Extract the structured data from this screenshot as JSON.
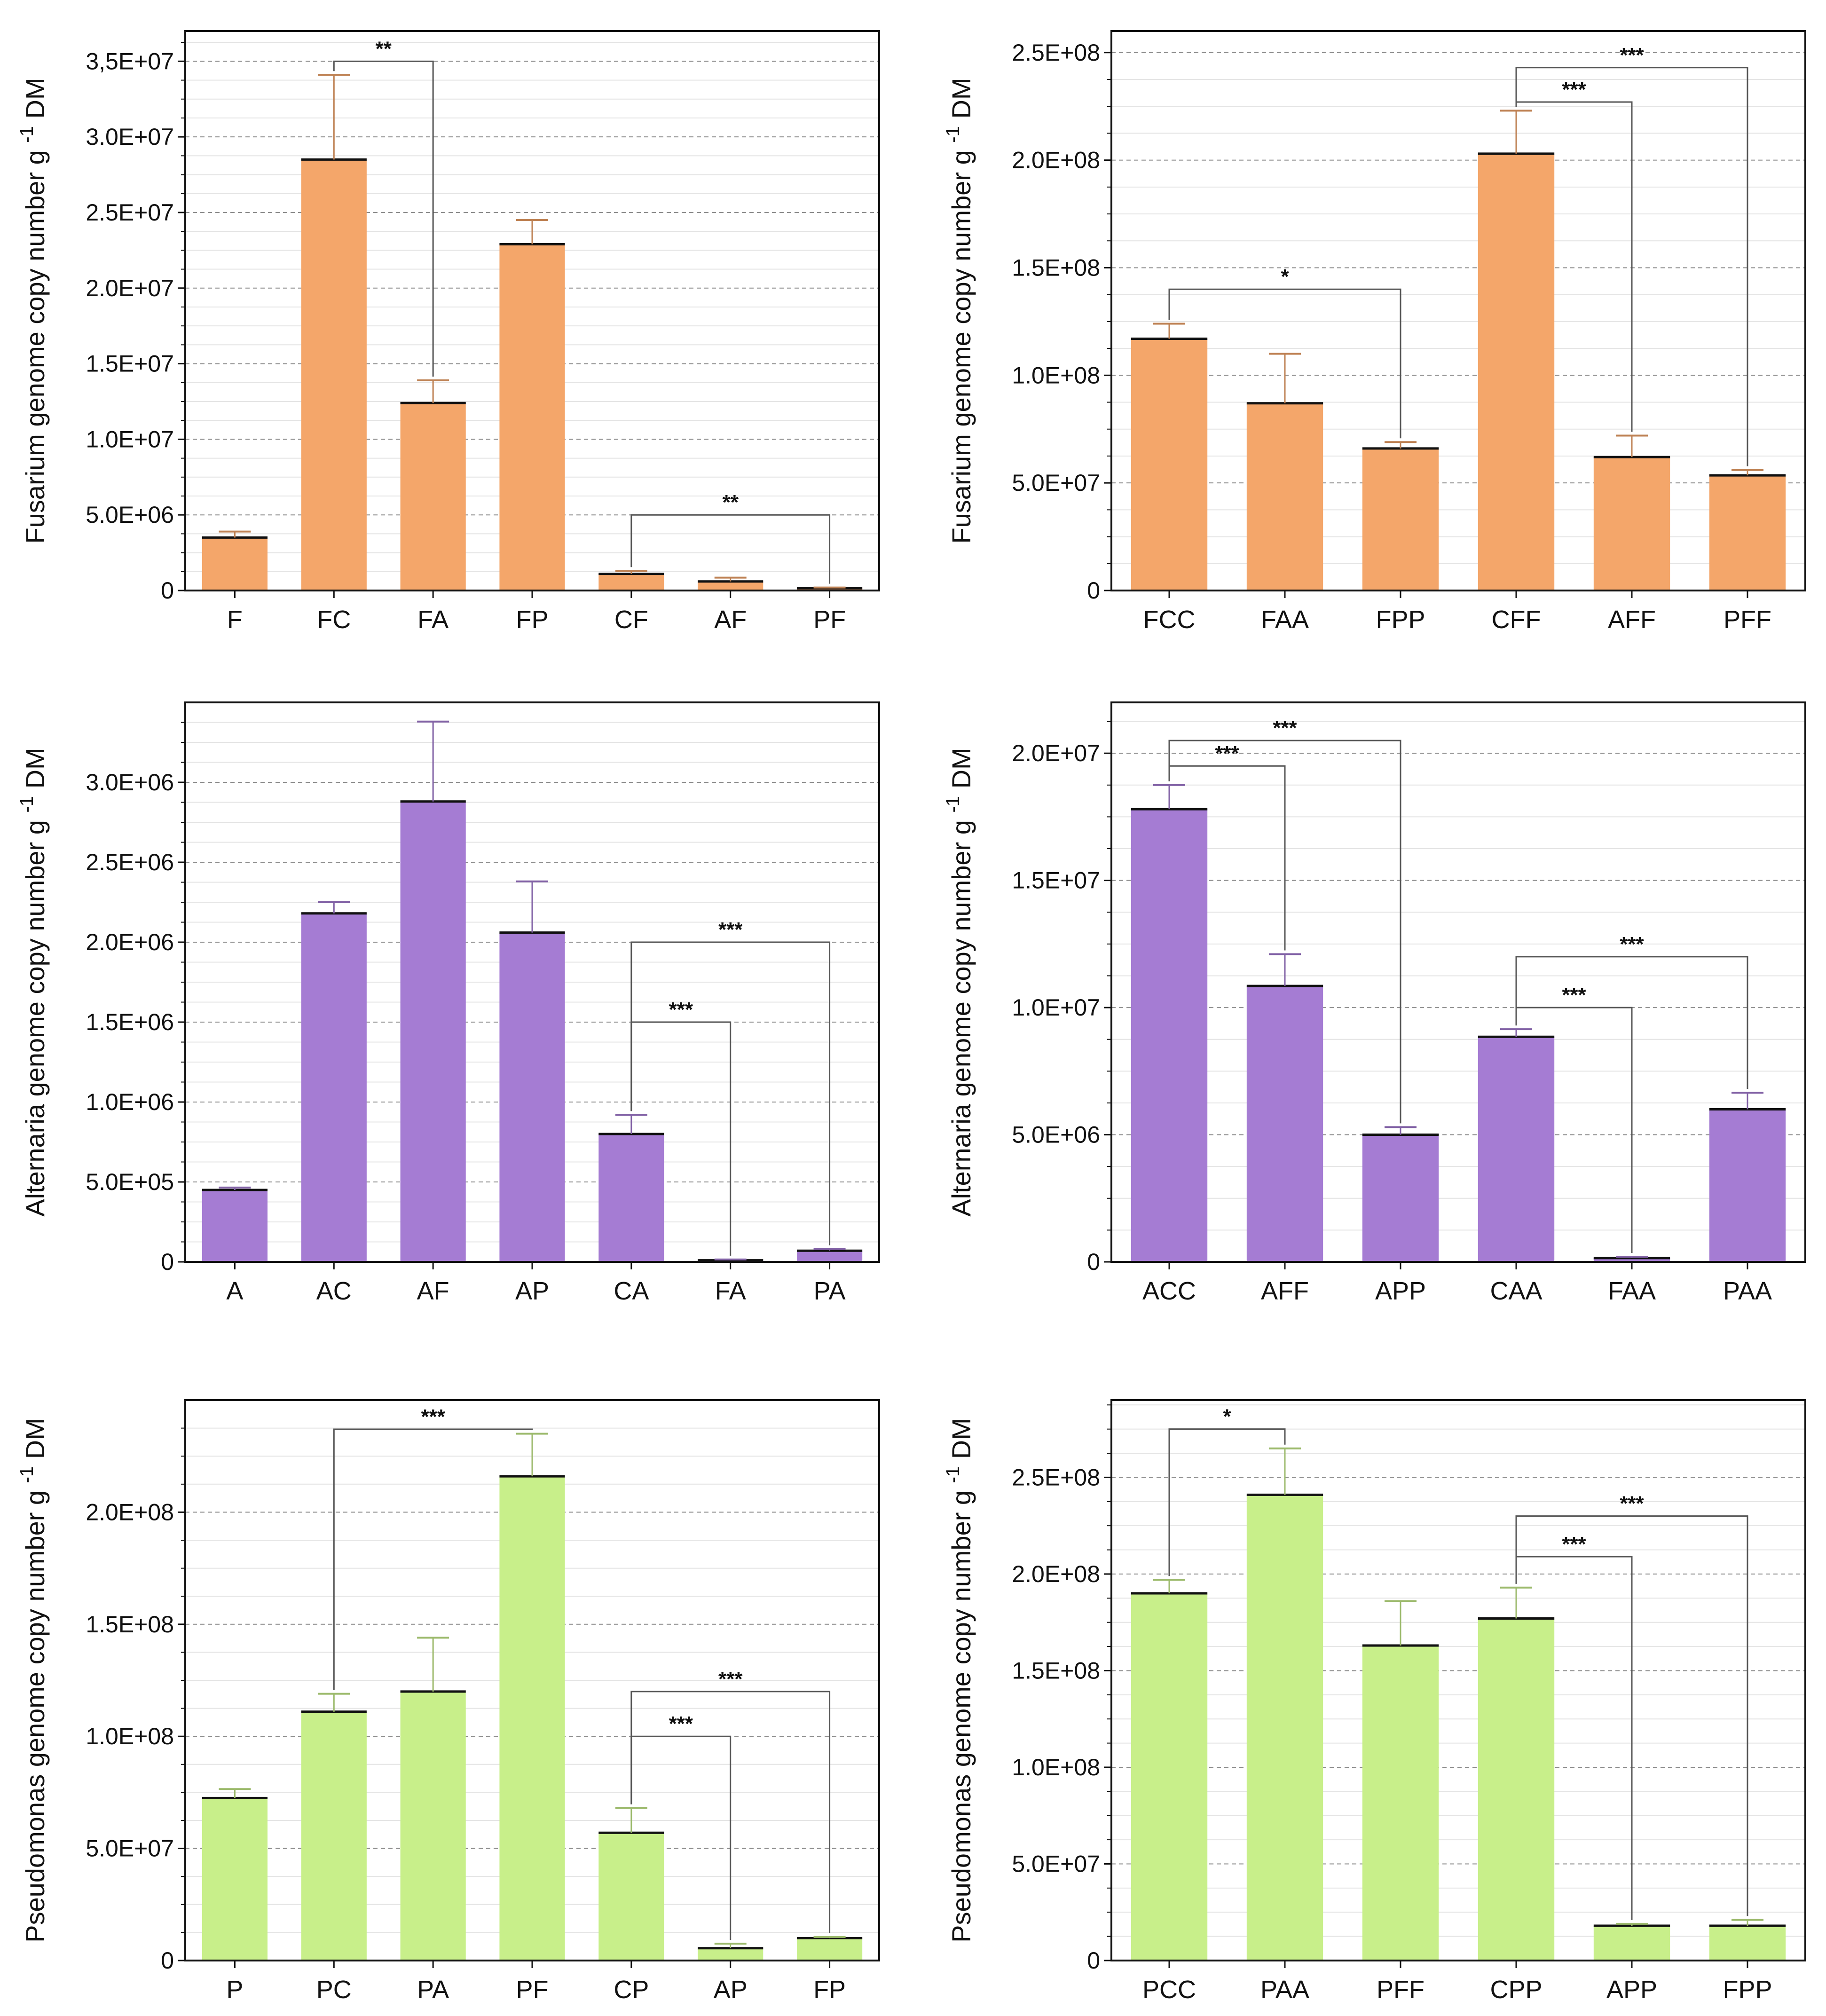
{
  "chart_data": [
    {
      "type": "bar",
      "ylabel_main": "Fusarium genome copy number g",
      "ylabel_sup": "-1",
      "ylabel_unit": " DM",
      "ylim": [
        0,
        37000000
      ],
      "yticks": [
        0,
        5000000,
        10000000,
        15000000,
        20000000,
        25000000,
        30000000,
        35000000
      ],
      "ytick_labels": [
        "0",
        "5.0E+06",
        "1.0E+07",
        "1.5E+07",
        "2.0E+07",
        "2.5E+07",
        "3.0E+07",
        "3,5E+07"
      ],
      "minor_step": 1250000,
      "color": "#F4A66A",
      "categories": [
        "F",
        "FC",
        "FA",
        "FP",
        "CF",
        "AF",
        "PF"
      ],
      "values": [
        3500000,
        28500000,
        12400000,
        22900000,
        1100000,
        600000,
        150000
      ],
      "errors": [
        400000,
        5600000,
        1500000,
        1600000,
        200000,
        250000,
        50000
      ],
      "significance": [
        {
          "from": 1,
          "to": 2,
          "label": "**",
          "y": 35000000
        },
        {
          "from": 4,
          "to": 6,
          "label": "**",
          "y": 5000000
        }
      ]
    },
    {
      "type": "bar",
      "ylabel_main": "Fusarium genome copy number g",
      "ylabel_sup": "-1",
      "ylabel_unit": " DM",
      "ylim": [
        0,
        260000000
      ],
      "yticks": [
        0,
        50000000,
        100000000,
        150000000,
        200000000,
        250000000
      ],
      "ytick_labels": [
        "0",
        "5.0E+07",
        "1.0E+08",
        "1.5E+08",
        "2.0E+08",
        "2.5E+08"
      ],
      "minor_step": 12500000,
      "color": "#F4A66A",
      "categories": [
        "FCC",
        "FAA",
        "FPP",
        "CFF",
        "AFF",
        "PFF"
      ],
      "values": [
        117000000,
        87000000,
        66000000,
        203000000,
        62000000,
        53500000
      ],
      "errors": [
        7000000,
        23000000,
        3000000,
        20000000,
        10000000,
        2500000
      ],
      "significance": [
        {
          "from": 0,
          "to": 2,
          "label": "*",
          "y": 140000000
        },
        {
          "from": 3,
          "to": 4,
          "label": "***",
          "y": 227000000
        },
        {
          "from": 3,
          "to": 5,
          "label": "***",
          "y": 243000000
        }
      ]
    },
    {
      "type": "bar",
      "ylabel_main": "Alternaria genome copy number g",
      "ylabel_sup": "-1",
      "ylabel_unit": " DM",
      "ylim": [
        0,
        3500000
      ],
      "yticks": [
        0,
        500000,
        1000000,
        1500000,
        2000000,
        2500000,
        3000000
      ],
      "ytick_labels": [
        "0",
        "5.0E+05",
        "1.0E+06",
        "1.5E+06",
        "2.0E+06",
        "2.5E+06",
        "3.0E+06"
      ],
      "minor_step": 125000,
      "color": "#A57CD3",
      "categories": [
        "A",
        "AC",
        "AF",
        "AP",
        "CA",
        "FA",
        "PA"
      ],
      "values": [
        450000,
        2180000,
        2880000,
        2060000,
        800000,
        10000,
        70000
      ],
      "errors": [
        15000,
        70000,
        500000,
        320000,
        120000,
        5000,
        10000
      ],
      "significance": [
        {
          "from": 4,
          "to": 5,
          "label": "***",
          "y": 1500000
        },
        {
          "from": 4,
          "to": 6,
          "label": "***",
          "y": 2000000
        }
      ]
    },
    {
      "type": "bar",
      "ylabel_main": "Alternaria genome copy number g",
      "ylabel_sup": "-1",
      "ylabel_unit": " DM",
      "ylim": [
        0,
        22000000
      ],
      "yticks": [
        0,
        5000000,
        10000000,
        15000000,
        20000000
      ],
      "ytick_labels": [
        "0",
        "5.0E+06",
        "1.0E+07",
        "1.5E+07",
        "2.0E+07"
      ],
      "minor_step": 1250000,
      "color": "#A57CD3",
      "categories": [
        "ACC",
        "AFF",
        "APP",
        "CAA",
        "FAA",
        "PAA"
      ],
      "values": [
        17800000,
        10850000,
        5000000,
        8850000,
        150000,
        6000000
      ],
      "errors": [
        950000,
        1250000,
        300000,
        300000,
        50000,
        650000
      ],
      "significance": [
        {
          "from": 0,
          "to": 1,
          "label": "***",
          "y": 19500000
        },
        {
          "from": 0,
          "to": 2,
          "label": "***",
          "y": 20500000
        },
        {
          "from": 3,
          "to": 4,
          "label": "***",
          "y": 10000000
        },
        {
          "from": 3,
          "to": 5,
          "label": "***",
          "y": 12000000
        }
      ]
    },
    {
      "type": "bar",
      "ylabel_main": "Pseudomonas genome copy number g",
      "ylabel_sup": "-1",
      "ylabel_unit": " DM",
      "ylim": [
        0,
        250000000
      ],
      "yticks": [
        0,
        50000000,
        100000000,
        150000000,
        200000000
      ],
      "ytick_labels": [
        "0",
        "5.0E+07",
        "1.0E+08",
        "1.5E+08",
        "2.0E+08"
      ],
      "minor_step": 12500000,
      "color": "#C8EF8A",
      "categories": [
        "P",
        "PC",
        "PA",
        "PF",
        "CP",
        "AP",
        "FP"
      ],
      "values": [
        72500000,
        111000000,
        120000000,
        216000000,
        57000000,
        5500000,
        10000000
      ],
      "errors": [
        4000000,
        8000000,
        24000000,
        19000000,
        11000000,
        2000000,
        500000
      ],
      "significance": [
        {
          "from": 1,
          "to": 3,
          "label": "***",
          "y": 237000000
        },
        {
          "from": 4,
          "to": 5,
          "label": "***",
          "y": 100000000
        },
        {
          "from": 4,
          "to": 6,
          "label": "***",
          "y": 120000000
        }
      ]
    },
    {
      "type": "bar",
      "ylabel_main": "Pseudomonas genome copy number g",
      "ylabel_sup": "-1",
      "ylabel_unit": " DM",
      "ylim": [
        0,
        290000000
      ],
      "yticks": [
        0,
        50000000,
        100000000,
        150000000,
        200000000,
        250000000
      ],
      "ytick_labels": [
        "0",
        "5.0E+07",
        "1.0E+08",
        "1.5E+08",
        "2.0E+08",
        "2.5E+08"
      ],
      "minor_step": 12500000,
      "color": "#C8EF8A",
      "categories": [
        "PCC",
        "PAA",
        "PFF",
        "CPP",
        "APP",
        "FPP"
      ],
      "values": [
        190000000,
        241000000,
        163000000,
        177000000,
        18000000,
        18000000
      ],
      "errors": [
        7000000,
        24000000,
        23000000,
        16000000,
        1000000,
        3000000
      ],
      "significance": [
        {
          "from": 0,
          "to": 1,
          "label": "*",
          "y": 275000000
        },
        {
          "from": 3,
          "to": 4,
          "label": "***",
          "y": 209000000
        },
        {
          "from": 3,
          "to": 5,
          "label": "***",
          "y": 230000000
        }
      ]
    }
  ]
}
